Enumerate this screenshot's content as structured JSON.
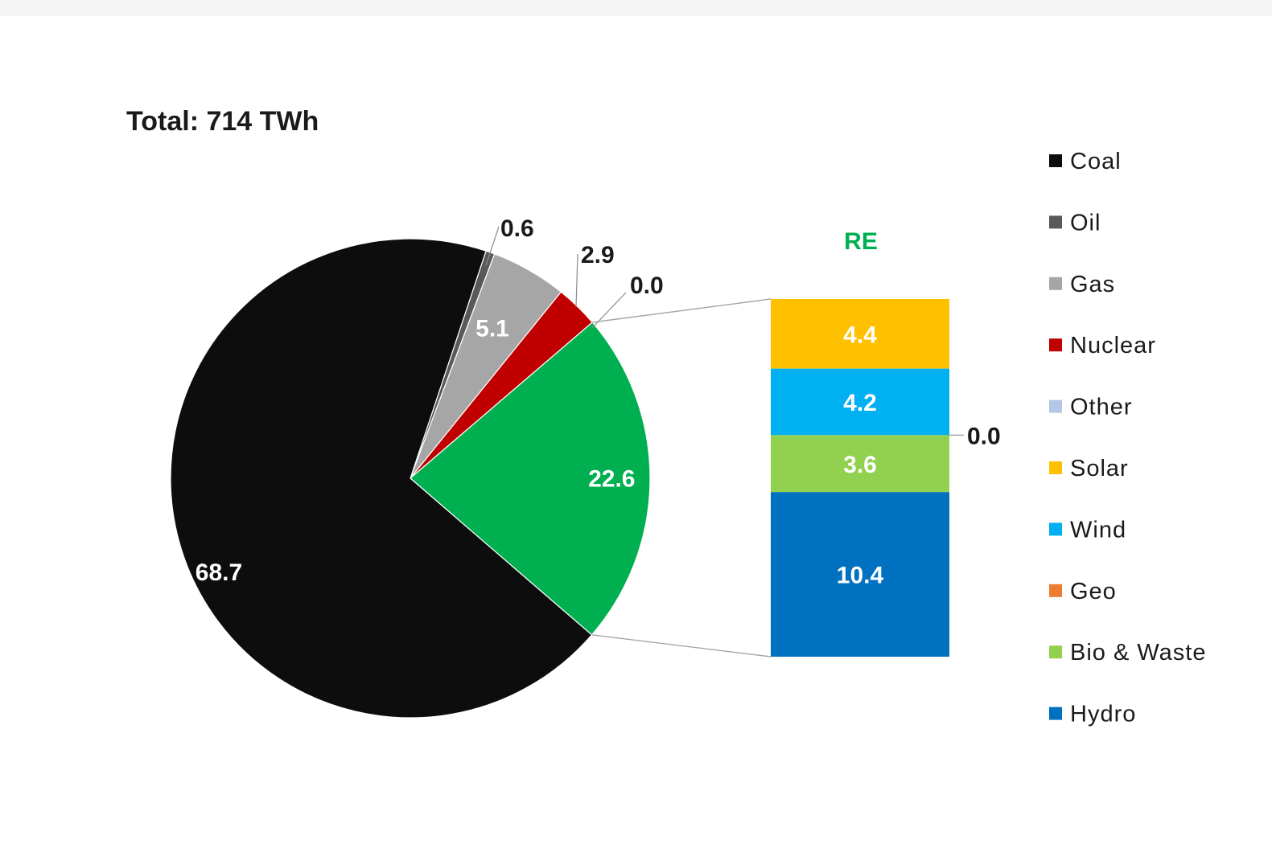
{
  "chart_data": {
    "type": "pie",
    "title": "Total: 714 TWh",
    "slices": [
      {
        "name": "Coal",
        "value": 68.7,
        "color": "#0d0d0d",
        "label_color": "#ffffff"
      },
      {
        "name": "Oil",
        "value": 0.6,
        "color": "#595959",
        "label_color": "#1a1a1a"
      },
      {
        "name": "Gas",
        "value": 5.1,
        "color": "#a6a6a6",
        "label_color": "#ffffff"
      },
      {
        "name": "Nuclear",
        "value": 2.9,
        "color": "#c00000",
        "label_color": "#1a1a1a"
      },
      {
        "name": "Other",
        "value": 0.0,
        "color": "#b4c7e7",
        "label_color": "#1a1a1a"
      },
      {
        "name": "RE",
        "value": 22.6,
        "color": "#00b050",
        "label_color": "#ffffff"
      }
    ],
    "breakdown": {
      "title": "RE",
      "title_color": "#00b050",
      "segments": [
        {
          "name": "Solar",
          "value": 4.4,
          "color": "#ffc000",
          "label_color": "#ffffff"
        },
        {
          "name": "Wind",
          "value": 4.2,
          "color": "#00b0f0",
          "label_color": "#ffffff"
        },
        {
          "name": "Geo",
          "value": 0.0,
          "color": "#ed7d31",
          "label_color": "#1a1a1a"
        },
        {
          "name": "Bio & Waste",
          "value": 3.6,
          "color": "#92d050",
          "label_color": "#ffffff"
        },
        {
          "name": "Hydro",
          "value": 10.4,
          "color": "#0070c0",
          "label_color": "#ffffff"
        }
      ]
    },
    "legend": {
      "position": "right",
      "items": [
        {
          "name": "Coal",
          "color": "#0d0d0d"
        },
        {
          "name": "Oil",
          "color": "#595959"
        },
        {
          "name": "Gas",
          "color": "#a6a6a6"
        },
        {
          "name": "Nuclear",
          "color": "#c00000"
        },
        {
          "name": "Other",
          "color": "#b4c7e7"
        },
        {
          "name": "Solar",
          "color": "#ffc000"
        },
        {
          "name": "Wind",
          "color": "#00b0f0"
        },
        {
          "name": "Geo",
          "color": "#ed7d31"
        },
        {
          "name": "Bio & Waste",
          "color": "#92d050"
        },
        {
          "name": "Hydro",
          "color": "#0070c0"
        }
      ]
    }
  }
}
